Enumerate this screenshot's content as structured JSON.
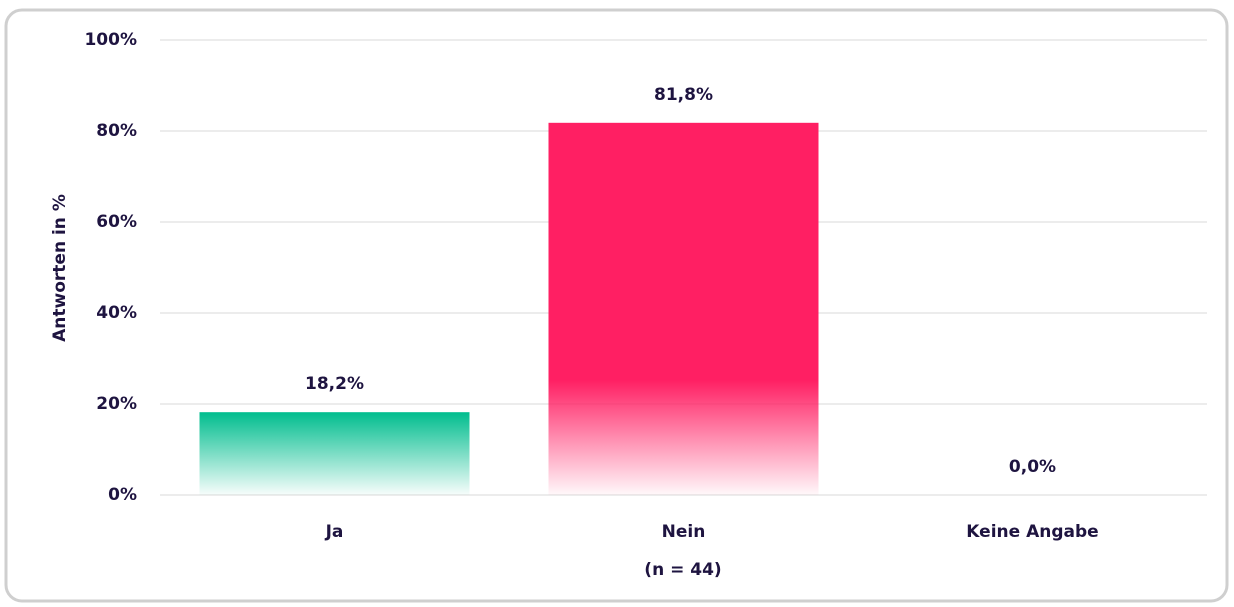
{
  "chart_data": {
    "type": "bar",
    "categories": [
      "Ja",
      "Nein",
      "Keine Angabe"
    ],
    "values": [
      18.2,
      81.8,
      0
    ],
    "value_labels": [
      "18,2%",
      "81,8%",
      "0,0%"
    ],
    "colors": [
      "#00bd8e",
      "#ff1f63",
      "#ff1f63"
    ],
    "ylabel": "Antworten in %",
    "xlabel": "(n = 44)",
    "ylim": [
      0,
      100
    ],
    "yticks": [
      {
        "value": 0,
        "label": "0%"
      },
      {
        "value": 20,
        "label": "20%"
      },
      {
        "value": 40,
        "label": "40%"
      },
      {
        "value": 60,
        "label": "60%"
      },
      {
        "value": 80,
        "label": "80%"
      },
      {
        "value": 100,
        "label": "100%"
      }
    ],
    "grid": true
  }
}
